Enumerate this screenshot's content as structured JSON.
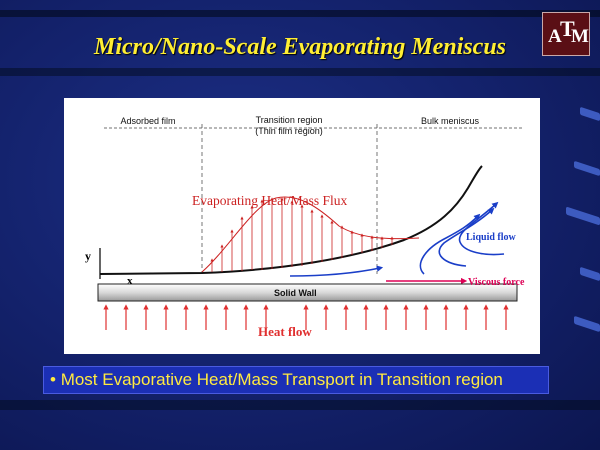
{
  "slide": {
    "title": "Micro/Nano-Scale Evaporating Meniscus",
    "logo_letters": {
      "left": "A",
      "middle": "T",
      "right": "M"
    }
  },
  "diagram": {
    "regions": {
      "adsorbed": "Adsorbed film",
      "transition_line1": "Transition region",
      "transition_line2": "(Thin film region)",
      "bulk": "Bulk meniscus"
    },
    "flux_label": "Evaporating Heat/Mass Flux",
    "liquid_flow_label": "Liquid flow",
    "viscous_force_label": "Viscous force",
    "solid_wall_label": "Solid Wall",
    "heat_flow_label": "Heat flow",
    "y_axis_label": "y",
    "x_axis_label": "x",
    "colors": {
      "flux_red": "#cc2222",
      "liquid_blue": "#1a3ec8",
      "viscous_magenta": "#dd0055",
      "heat_red": "#e03030"
    }
  },
  "bullet": {
    "marker": "•",
    "text": "Most Evaporative Heat/Mass Transport in Transition region"
  }
}
